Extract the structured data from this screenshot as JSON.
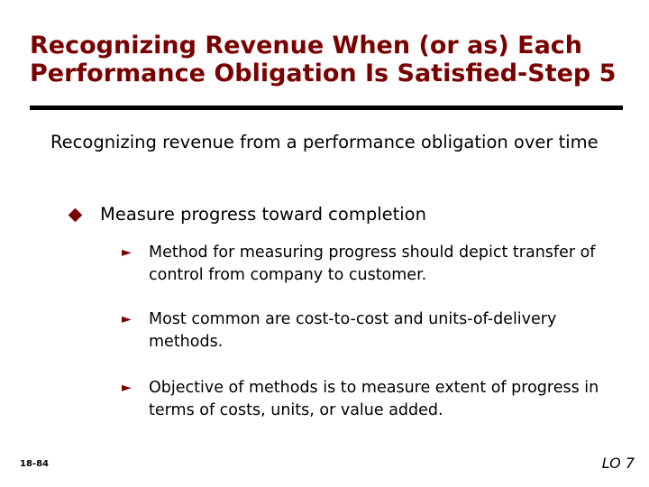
{
  "slide": {
    "title": "Recognizing Revenue When (or as) Each Performance Obligation Is Satisfied-Step 5",
    "main_point": "Recognizing revenue from a performance obligation over time",
    "sub_point": "Measure progress toward completion",
    "details": [
      "Method for measuring progress should depict transfer of control from company to customer.",
      "Most common are cost-to-cost and units-of-delivery methods.",
      "Objective of methods is to measure extent of progress in terms of costs, units, or value added."
    ],
    "slide_number": "18-84",
    "learning_objective": "LO 7"
  },
  "colors": {
    "title": "#7a0000",
    "bullet_marker": "#7a0000",
    "rule": "#000000"
  },
  "icons": {
    "level1_marker": "diamond-bullet-icon",
    "level2_marker": "triangle-arrow-bullet-icon"
  }
}
